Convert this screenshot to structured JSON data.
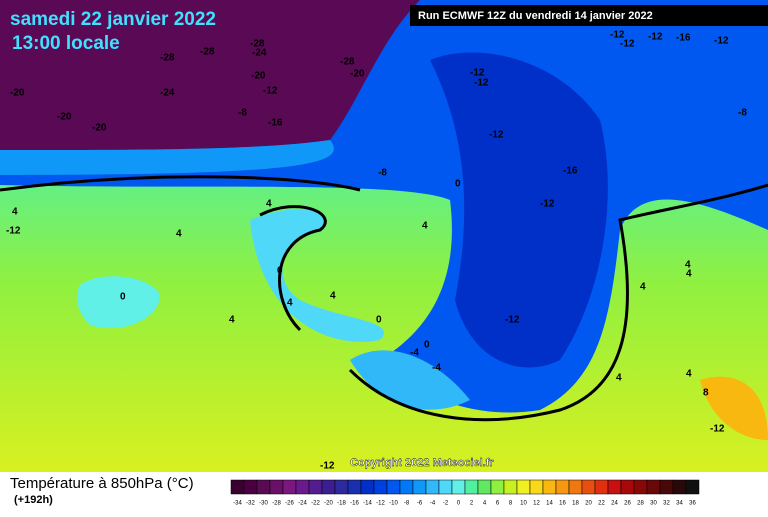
{
  "header": {
    "date": "samedi 22 janvier 2022",
    "time": "13:00 locale",
    "run": "Run ECMWF 12Z du vendredi 14 janvier 2022"
  },
  "map": {
    "copyright": "Copyright 2022 Meteociel.fr",
    "labels": [
      -28,
      -28,
      -28,
      -24,
      -20,
      -24,
      -12,
      -20,
      -20,
      -20,
      -8,
      -16,
      -28,
      -20,
      -12,
      -12,
      -12,
      -16,
      -12,
      -8,
      -8,
      -12,
      -12,
      -12,
      -16,
      -12,
      0,
      4,
      4,
      0,
      4,
      4,
      0,
      4,
      0,
      -4,
      0,
      -4,
      -12,
      4,
      4,
      4,
      4,
      4,
      8,
      -12,
      -12,
      4,
      4,
      -12
    ]
  },
  "legend": {
    "title": "Température à 850hPa (°C)",
    "lead": "(+192h)",
    "scale": [
      {
        "value": -34,
        "color": "#3a0030"
      },
      {
        "value": -32,
        "color": "#4a0040"
      },
      {
        "value": -30,
        "color": "#5a0a55"
      },
      {
        "value": -28,
        "color": "#6a1068"
      },
      {
        "value": -26,
        "color": "#7a1880"
      },
      {
        "value": -24,
        "color": "#6a1a8c"
      },
      {
        "value": -22,
        "color": "#551c90"
      },
      {
        "value": -20,
        "color": "#3c1e94"
      },
      {
        "value": -18,
        "color": "#2c2a9c"
      },
      {
        "value": -16,
        "color": "#1830b0"
      },
      {
        "value": -14,
        "color": "#0030c8"
      },
      {
        "value": -12,
        "color": "#0040e0"
      },
      {
        "value": -10,
        "color": "#0058f0"
      },
      {
        "value": -8,
        "color": "#0078f8"
      },
      {
        "value": -6,
        "color": "#1098f8"
      },
      {
        "value": -4,
        "color": "#30b8f8"
      },
      {
        "value": -2,
        "color": "#50d8f8"
      },
      {
        "value": 0,
        "color": "#60f0e8"
      },
      {
        "value": 2,
        "color": "#50f0a0"
      },
      {
        "value": 4,
        "color": "#60e860"
      },
      {
        "value": 6,
        "color": "#90f040"
      },
      {
        "value": 8,
        "color": "#c8f020"
      },
      {
        "value": 10,
        "color": "#f0f020"
      },
      {
        "value": 12,
        "color": "#f8d818"
      },
      {
        "value": 14,
        "color": "#f8b810"
      },
      {
        "value": 16,
        "color": "#f89810"
      },
      {
        "value": 18,
        "color": "#f07810"
      },
      {
        "value": 20,
        "color": "#e85010"
      },
      {
        "value": 22,
        "color": "#e03010"
      },
      {
        "value": 24,
        "color": "#c81010"
      },
      {
        "value": 26,
        "color": "#a80808"
      },
      {
        "value": 28,
        "color": "#880808"
      },
      {
        "value": 30,
        "color": "#680808"
      },
      {
        "value": 32,
        "color": "#480808"
      },
      {
        "value": 34,
        "color": "#280808"
      },
      {
        "value": 36,
        "color": "#101010"
      }
    ]
  }
}
